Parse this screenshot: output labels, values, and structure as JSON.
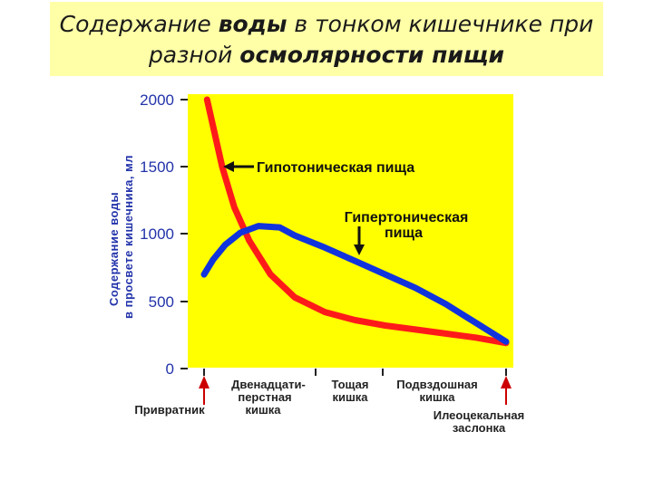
{
  "title": {
    "line1_pre": "Содержание ",
    "line1_bold": "воды",
    "line1_post": " в тонком кишечнике при",
    "line2_pre": "разной ",
    "line2_bold": "осмолярности пищи"
  },
  "colors": {
    "plot_bg": "#ffff00",
    "hypotonic": "#ff1a1a",
    "hypertonic": "#1133dd",
    "axis_text": "#2233aa",
    "marker": "#cc0000"
  },
  "chart_data": {
    "type": "line",
    "ylabel_line1": "Содержание воды",
    "ylabel_line2": "в просвете кишечника, мл",
    "ylim": [
      0,
      2000
    ],
    "yticks": [
      "2000",
      "1500",
      "1000",
      "500",
      "0"
    ],
    "xlim": [
      0,
      1
    ],
    "grid": false,
    "series": [
      {
        "name": "Гипотоническая пища",
        "x": [
          0.01,
          0.03,
          0.06,
          0.1,
          0.15,
          0.22,
          0.3,
          0.4,
          0.5,
          0.6,
          0.7,
          0.8,
          0.9,
          1.0
        ],
        "y": [
          2000,
          1800,
          1500,
          1200,
          950,
          700,
          530,
          420,
          360,
          320,
          290,
          260,
          230,
          190
        ]
      },
      {
        "name": "Гипертоническая пища",
        "x": [
          0.0,
          0.03,
          0.07,
          0.12,
          0.18,
          0.25,
          0.3,
          0.4,
          0.5,
          0.6,
          0.7,
          0.8,
          0.9,
          1.0
        ],
        "y": [
          700,
          810,
          920,
          1010,
          1060,
          1050,
          990,
          900,
          800,
          700,
          600,
          480,
          340,
          200
        ]
      }
    ],
    "annotations": {
      "hypotonic_label": "Гипотоническая пища",
      "hypertonic_label_line1": "Гипертоническая",
      "hypertonic_label_line2": "пища"
    },
    "segments": [
      {
        "line1": "Двенадцати-",
        "line2": "перстная",
        "line3": "кишка"
      },
      {
        "line1": "Тощая",
        "line2": "кишка"
      },
      {
        "line1": "Подвздошная",
        "line2": "кишка"
      }
    ],
    "markers": {
      "start_label": "Привратник",
      "end_label_line1": "Илеоцекальная",
      "end_label_line2": "заслонка"
    }
  }
}
